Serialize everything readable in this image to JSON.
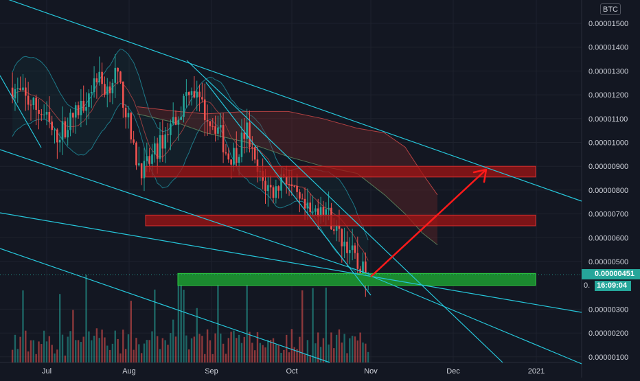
{
  "currency_badge": "BTC",
  "last_price_label": "0.00000451",
  "countdown_label": "16:09:04",
  "countdown_prefix": "0.",
  "colors": {
    "background": "#131722",
    "grid": "#1e222d",
    "candle_up": "#26a69a",
    "candle_down": "#ef5350",
    "trendline": "#26c6da",
    "resistance_zone": "#8b1c1c",
    "support_zone": "#1b8a2f",
    "projection_arrow": "#ff1a1a",
    "cloud": "#4a2a2a",
    "price_tag": "#26a69a"
  },
  "chart_data": {
    "type": "candlestick",
    "x_axis": {
      "ticks": [
        "Jul",
        "Aug",
        "Sep",
        "Oct",
        "Nov",
        "Dec",
        "2021"
      ]
    },
    "y_axis": {
      "ticks": [
        "0.00001500",
        "0.00001400",
        "0.00001300",
        "0.00001200",
        "0.00001100",
        "0.00001000",
        "0.00000900",
        "0.00000800",
        "0.00000700",
        "0.00000600",
        "0.00000500",
        "0.00000300",
        "0.00000200",
        "0.00000100"
      ],
      "range": [
        9.5e-07,
        1.56e-05
      ],
      "scale": "linear"
    },
    "series": [
      {
        "type": "candlestick",
        "approx_start": "2020-06-18",
        "approx_end": "2020-10-31",
        "approx_high": 1.4e-05,
        "approx_low": 4.4e-06,
        "last_close": 4.51e-06
      },
      {
        "type": "volume",
        "peak_month": "Aug"
      }
    ],
    "annotations": {
      "resistance_zones": [
        {
          "from": "2020-08-08",
          "to": "2020-12-31",
          "low": 8.55e-06,
          "high": 9e-06
        },
        {
          "from": "2020-08-08",
          "to": "2020-12-31",
          "low": 6.5e-06,
          "high": 6.95e-06
        }
      ],
      "support_zone": {
        "from": "2020-08-20",
        "to": "2020-12-31",
        "low": 4e-06,
        "high": 4.5e-06
      },
      "projection_arrow": {
        "from": {
          "date": "2020-11-01",
          "price": 4.5e-06
        },
        "to": {
          "date": "2020-12-15",
          "price": 8.8e-06
        }
      },
      "trendlines": 6
    },
    "last_price": 4.51e-06,
    "grid": true
  }
}
